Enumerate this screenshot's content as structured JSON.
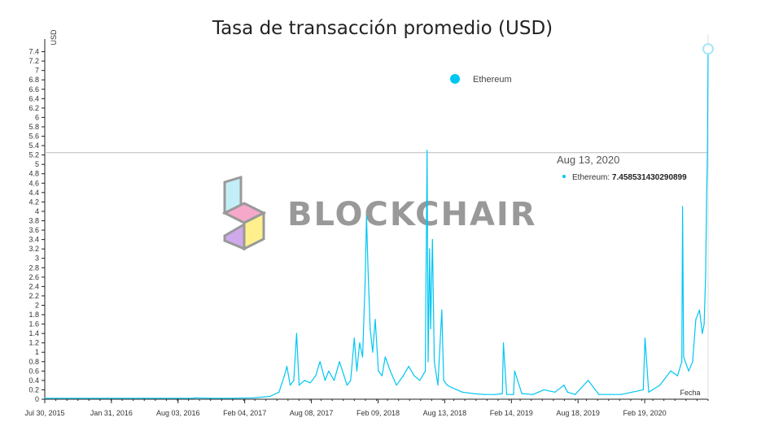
{
  "chart_data": {
    "type": "line",
    "title": "Tasa de transacción promedio (USD)",
    "ylabel": "USD",
    "xlabel": "Fecha",
    "ylim": [
      0,
      7.6
    ],
    "grid": false,
    "legend_position": "top-center",
    "watermark": "BLOCKCHAIR",
    "y_ticks": [
      "0",
      "0.2",
      "0.4",
      "0.6",
      "0.8",
      "1",
      "1.2",
      "1.4",
      "1.6",
      "1.8",
      "2",
      "2.2",
      "2.4",
      "2.6",
      "2.8",
      "3",
      "3.2",
      "3.4",
      "3.6",
      "3.8",
      "4",
      "4.2",
      "4.4",
      "4.6",
      "4.8",
      "5",
      "5.2",
      "5.4",
      "5.6",
      "5.8",
      "6",
      "6.2",
      "6.4",
      "6.6",
      "6.8",
      "7",
      "7.2",
      "7.4"
    ],
    "x_ticks": [
      "Jul 30, 2015",
      "Jan 31, 2016",
      "Aug 03, 2016",
      "Feb 04, 2017",
      "Aug 08, 2017",
      "Feb 09, 2018",
      "Aug 13, 2018",
      "Feb 14, 2019",
      "Aug 18, 2019",
      "Feb 19, 2020"
    ],
    "x_tick_dates": [
      "2015-07-30",
      "2016-01-31",
      "2016-08-03",
      "2017-02-04",
      "2017-08-08",
      "2018-02-09",
      "2018-08-13",
      "2019-02-14",
      "2019-08-18",
      "2020-02-19"
    ],
    "x_start": "2015-07-30",
    "x_end": "2020-08-13",
    "series": [
      {
        "name": "Ethereum",
        "color": "#00c6f2",
        "x": [
          "2015-07-30",
          "2015-11-01",
          "2016-02-01",
          "2016-05-01",
          "2016-08-01",
          "2016-09-15",
          "2016-09-20",
          "2016-11-01",
          "2017-01-01",
          "2017-03-01",
          "2017-04-15",
          "2017-05-10",
          "2017-05-25",
          "2017-06-01",
          "2017-06-10",
          "2017-06-20",
          "2017-06-28",
          "2017-07-05",
          "2017-07-20",
          "2017-08-05",
          "2017-08-20",
          "2017-09-01",
          "2017-09-15",
          "2017-09-25",
          "2017-10-10",
          "2017-10-25",
          "2017-11-15",
          "2017-11-25",
          "2017-12-05",
          "2017-12-12",
          "2017-12-20",
          "2017-12-28",
          "2018-01-04",
          "2018-01-08",
          "2018-01-12",
          "2018-01-18",
          "2018-01-25",
          "2018-02-01",
          "2018-02-10",
          "2018-02-20",
          "2018-03-01",
          "2018-03-15",
          "2018-04-01",
          "2018-04-20",
          "2018-05-05",
          "2018-05-20",
          "2018-06-05",
          "2018-06-20",
          "2018-06-25",
          "2018-06-28",
          "2018-07-02",
          "2018-07-05",
          "2018-07-10",
          "2018-07-15",
          "2018-07-25",
          "2018-08-05",
          "2018-08-10",
          "2018-08-20",
          "2018-09-01",
          "2018-10-01",
          "2018-11-01",
          "2018-12-01",
          "2019-01-01",
          "2019-01-20",
          "2019-01-23",
          "2019-02-01",
          "2019-02-20",
          "2019-02-23",
          "2019-03-15",
          "2019-04-15",
          "2019-05-15",
          "2019-06-15",
          "2019-07-10",
          "2019-07-20",
          "2019-08-10",
          "2019-09-15",
          "2019-10-15",
          "2019-11-15",
          "2019-12-15",
          "2020-01-15",
          "2020-02-15",
          "2020-02-20",
          "2020-03-01",
          "2020-03-12",
          "2020-04-01",
          "2020-05-01",
          "2020-05-20",
          "2020-06-01",
          "2020-06-03",
          "2020-06-06",
          "2020-06-20",
          "2020-07-01",
          "2020-07-10",
          "2020-07-20",
          "2020-07-28",
          "2020-08-02",
          "2020-08-06",
          "2020-08-09",
          "2020-08-11",
          "2020-08-13"
        ],
        "values": [
          0.02,
          0.02,
          0.02,
          0.02,
          0.02,
          0.02,
          0.03,
          0.02,
          0.02,
          0.03,
          0.06,
          0.15,
          0.5,
          0.7,
          0.3,
          0.4,
          1.4,
          0.3,
          0.4,
          0.35,
          0.5,
          0.8,
          0.4,
          0.6,
          0.4,
          0.8,
          0.3,
          0.4,
          1.3,
          0.6,
          1.2,
          0.9,
          2.5,
          3.9,
          2.8,
          1.5,
          1.0,
          1.7,
          0.6,
          0.5,
          0.9,
          0.6,
          0.3,
          0.5,
          0.7,
          0.5,
          0.4,
          0.6,
          5.3,
          0.8,
          3.2,
          1.5,
          3.4,
          0.8,
          0.3,
          1.9,
          0.4,
          0.3,
          0.25,
          0.15,
          0.12,
          0.1,
          0.1,
          0.12,
          1.2,
          0.1,
          0.1,
          0.6,
          0.12,
          0.1,
          0.2,
          0.15,
          0.3,
          0.15,
          0.1,
          0.4,
          0.1,
          0.1,
          0.1,
          0.15,
          0.2,
          1.3,
          0.15,
          0.2,
          0.3,
          0.6,
          0.5,
          0.8,
          4.1,
          0.9,
          0.6,
          0.8,
          1.7,
          1.9,
          1.4,
          1.6,
          2.6,
          4.3,
          5.2,
          7.458531430290899
        ]
      }
    ],
    "tooltip": {
      "date": "Aug 13, 2020",
      "series": "Ethereum",
      "value": "7.458531430290899"
    },
    "crosshair_value": 5.25
  }
}
